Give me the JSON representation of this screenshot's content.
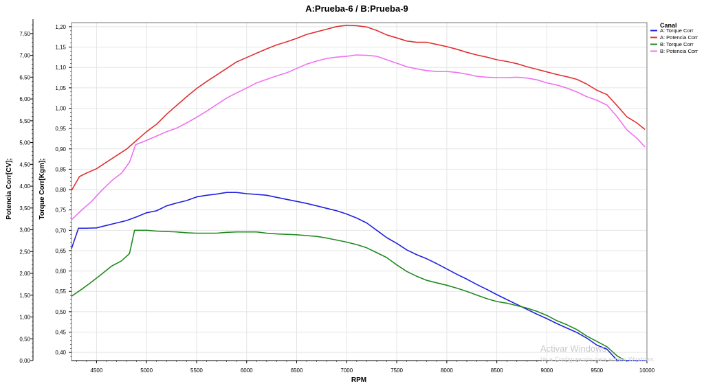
{
  "watermark": {
    "line1": "Activar Windows",
    "line2": "Ve a Configuración para activar Windows."
  },
  "chart_data": {
    "type": "line",
    "title": "A:Prueba-6 / B:Prueba-9",
    "xlabel": "RPM",
    "xlim": [
      4250,
      10000
    ],
    "x_ticks": [
      "4500",
      "5000",
      "5500",
      "6000",
      "6500",
      "7000",
      "7500",
      "8000",
      "8500",
      "9000",
      "9500",
      "10000"
    ],
    "y_left": {
      "label": "Potencia Corr[CV];",
      "ylim": [
        0,
        7.75
      ],
      "ticks": [
        "0,00",
        "0,50",
        "1,00",
        "1,50",
        "2,00",
        "2,50",
        "3,00",
        "3,50",
        "4,00",
        "4,50",
        "5,00",
        "5,50",
        "6,00",
        "6,50",
        "7,00",
        "7,50"
      ]
    },
    "y_right": {
      "label": "Torque Corr[Kgm];",
      "ylim": [
        0.38,
        1.21
      ],
      "ticks": [
        "0,40",
        "0,45",
        "0,50",
        "0,55",
        "0,60",
        "0,65",
        "0,70",
        "0,75",
        "0,80",
        "0,85",
        "0,90",
        "0,95",
        "1,00",
        "1,05",
        "1,10",
        "1,15",
        "1,20"
      ]
    },
    "grid": true,
    "legend": {
      "title": "Canal",
      "position": "right"
    },
    "series": [
      {
        "name": "A: Torque Corr",
        "color": "#1f1fe0",
        "axis": "right",
        "points": [
          [
            4250,
            0.655
          ],
          [
            4320,
            0.705
          ],
          [
            4400,
            0.705
          ],
          [
            4500,
            0.706
          ],
          [
            4600,
            0.712
          ],
          [
            4700,
            0.718
          ],
          [
            4800,
            0.724
          ],
          [
            4900,
            0.733
          ],
          [
            5000,
            0.743
          ],
          [
            5100,
            0.748
          ],
          [
            5200,
            0.76
          ],
          [
            5300,
            0.767
          ],
          [
            5400,
            0.773
          ],
          [
            5500,
            0.782
          ],
          [
            5600,
            0.786
          ],
          [
            5700,
            0.789
          ],
          [
            5800,
            0.793
          ],
          [
            5900,
            0.793
          ],
          [
            6000,
            0.79
          ],
          [
            6100,
            0.788
          ],
          [
            6200,
            0.786
          ],
          [
            6300,
            0.781
          ],
          [
            6400,
            0.776
          ],
          [
            6500,
            0.771
          ],
          [
            6600,
            0.766
          ],
          [
            6700,
            0.76
          ],
          [
            6800,
            0.754
          ],
          [
            6900,
            0.748
          ],
          [
            7000,
            0.74
          ],
          [
            7100,
            0.73
          ],
          [
            7200,
            0.718
          ],
          [
            7300,
            0.7
          ],
          [
            7400,
            0.682
          ],
          [
            7500,
            0.668
          ],
          [
            7600,
            0.652
          ],
          [
            7700,
            0.64
          ],
          [
            7800,
            0.63
          ],
          [
            7900,
            0.618
          ],
          [
            8000,
            0.605
          ],
          [
            8100,
            0.592
          ],
          [
            8200,
            0.58
          ],
          [
            8300,
            0.567
          ],
          [
            8400,
            0.555
          ],
          [
            8500,
            0.542
          ],
          [
            8600,
            0.53
          ],
          [
            8700,
            0.518
          ],
          [
            8800,
            0.506
          ],
          [
            8900,
            0.494
          ],
          [
            9000,
            0.483
          ],
          [
            9100,
            0.471
          ],
          [
            9200,
            0.46
          ],
          [
            9300,
            0.449
          ],
          [
            9400,
            0.435
          ],
          [
            9500,
            0.418
          ],
          [
            9600,
            0.408
          ],
          [
            9700,
            0.381
          ],
          [
            9800,
            0.368
          ],
          [
            9900,
            0.358
          ],
          [
            9980,
            0.348
          ]
        ]
      },
      {
        "name": "A: Potencia Corr",
        "color": "#e03030",
        "axis": "left",
        "points": [
          [
            4250,
            3.9
          ],
          [
            4330,
            4.22
          ],
          [
            4400,
            4.3
          ],
          [
            4500,
            4.4
          ],
          [
            4600,
            4.55
          ],
          [
            4700,
            4.7
          ],
          [
            4800,
            4.85
          ],
          [
            4900,
            5.05
          ],
          [
            5000,
            5.25
          ],
          [
            5100,
            5.42
          ],
          [
            5200,
            5.65
          ],
          [
            5300,
            5.85
          ],
          [
            5400,
            6.05
          ],
          [
            5500,
            6.24
          ],
          [
            5600,
            6.4
          ],
          [
            5700,
            6.55
          ],
          [
            5800,
            6.7
          ],
          [
            5900,
            6.85
          ],
          [
            6000,
            6.95
          ],
          [
            6100,
            7.05
          ],
          [
            6200,
            7.15
          ],
          [
            6300,
            7.24
          ],
          [
            6400,
            7.31
          ],
          [
            6500,
            7.39
          ],
          [
            6600,
            7.48
          ],
          [
            6700,
            7.54
          ],
          [
            6800,
            7.6
          ],
          [
            6900,
            7.66
          ],
          [
            7000,
            7.69
          ],
          [
            7100,
            7.68
          ],
          [
            7200,
            7.65
          ],
          [
            7300,
            7.57
          ],
          [
            7400,
            7.47
          ],
          [
            7500,
            7.4
          ],
          [
            7600,
            7.33
          ],
          [
            7700,
            7.3
          ],
          [
            7800,
            7.3
          ],
          [
            7900,
            7.25
          ],
          [
            8000,
            7.2
          ],
          [
            8100,
            7.14
          ],
          [
            8200,
            7.07
          ],
          [
            8300,
            7.01
          ],
          [
            8400,
            6.96
          ],
          [
            8500,
            6.9
          ],
          [
            8600,
            6.86
          ],
          [
            8700,
            6.81
          ],
          [
            8800,
            6.74
          ],
          [
            8900,
            6.68
          ],
          [
            9000,
            6.62
          ],
          [
            9100,
            6.56
          ],
          [
            9200,
            6.51
          ],
          [
            9300,
            6.45
          ],
          [
            9400,
            6.34
          ],
          [
            9500,
            6.2
          ],
          [
            9600,
            6.1
          ],
          [
            9700,
            5.85
          ],
          [
            9800,
            5.59
          ],
          [
            9900,
            5.45
          ],
          [
            9980,
            5.3
          ]
        ]
      },
      {
        "name": "B: Torque Corr",
        "color": "#1f8a1f",
        "axis": "right",
        "points": [
          [
            4250,
            0.538
          ],
          [
            4350,
            0.555
          ],
          [
            4450,
            0.573
          ],
          [
            4550,
            0.592
          ],
          [
            4650,
            0.612
          ],
          [
            4750,
            0.625
          ],
          [
            4830,
            0.643
          ],
          [
            4880,
            0.7
          ],
          [
            5000,
            0.7
          ],
          [
            5100,
            0.698
          ],
          [
            5200,
            0.697
          ],
          [
            5300,
            0.696
          ],
          [
            5400,
            0.694
          ],
          [
            5500,
            0.693
          ],
          [
            5600,
            0.693
          ],
          [
            5700,
            0.693
          ],
          [
            5800,
            0.695
          ],
          [
            5900,
            0.696
          ],
          [
            6000,
            0.696
          ],
          [
            6100,
            0.696
          ],
          [
            6200,
            0.693
          ],
          [
            6300,
            0.691
          ],
          [
            6400,
            0.69
          ],
          [
            6500,
            0.689
          ],
          [
            6600,
            0.687
          ],
          [
            6700,
            0.685
          ],
          [
            6800,
            0.681
          ],
          [
            6900,
            0.676
          ],
          [
            7000,
            0.671
          ],
          [
            7100,
            0.665
          ],
          [
            7200,
            0.657
          ],
          [
            7300,
            0.645
          ],
          [
            7400,
            0.633
          ],
          [
            7500,
            0.615
          ],
          [
            7600,
            0.599
          ],
          [
            7700,
            0.587
          ],
          [
            7800,
            0.577
          ],
          [
            7900,
            0.571
          ],
          [
            8000,
            0.565
          ],
          [
            8100,
            0.558
          ],
          [
            8200,
            0.55
          ],
          [
            8300,
            0.541
          ],
          [
            8400,
            0.532
          ],
          [
            8500,
            0.525
          ],
          [
            8600,
            0.521
          ],
          [
            8700,
            0.515
          ],
          [
            8800,
            0.509
          ],
          [
            8900,
            0.501
          ],
          [
            9000,
            0.491
          ],
          [
            9100,
            0.478
          ],
          [
            9200,
            0.468
          ],
          [
            9300,
            0.456
          ],
          [
            9400,
            0.44
          ],
          [
            9500,
            0.427
          ],
          [
            9600,
            0.414
          ],
          [
            9700,
            0.392
          ],
          [
            9780,
            0.375
          ]
        ]
      },
      {
        "name": "B: Potencia Corr",
        "color": "#f070f0",
        "axis": "left",
        "points": [
          [
            4250,
            3.23
          ],
          [
            4350,
            3.45
          ],
          [
            4450,
            3.65
          ],
          [
            4550,
            3.9
          ],
          [
            4650,
            4.12
          ],
          [
            4750,
            4.3
          ],
          [
            4830,
            4.55
          ],
          [
            4890,
            4.95
          ],
          [
            5000,
            5.05
          ],
          [
            5100,
            5.15
          ],
          [
            5200,
            5.25
          ],
          [
            5300,
            5.33
          ],
          [
            5400,
            5.45
          ],
          [
            5500,
            5.58
          ],
          [
            5600,
            5.72
          ],
          [
            5700,
            5.87
          ],
          [
            5800,
            6.02
          ],
          [
            5900,
            6.14
          ],
          [
            6000,
            6.25
          ],
          [
            6100,
            6.37
          ],
          [
            6200,
            6.45
          ],
          [
            6300,
            6.53
          ],
          [
            6400,
            6.6
          ],
          [
            6500,
            6.7
          ],
          [
            6600,
            6.8
          ],
          [
            6700,
            6.87
          ],
          [
            6800,
            6.93
          ],
          [
            6900,
            6.96
          ],
          [
            7000,
            6.98
          ],
          [
            7100,
            7.01
          ],
          [
            7200,
            7.0
          ],
          [
            7300,
            6.98
          ],
          [
            7400,
            6.9
          ],
          [
            7500,
            6.82
          ],
          [
            7600,
            6.74
          ],
          [
            7700,
            6.69
          ],
          [
            7800,
            6.65
          ],
          [
            7900,
            6.63
          ],
          [
            8000,
            6.63
          ],
          [
            8100,
            6.61
          ],
          [
            8200,
            6.57
          ],
          [
            8300,
            6.52
          ],
          [
            8400,
            6.5
          ],
          [
            8500,
            6.49
          ],
          [
            8600,
            6.49
          ],
          [
            8700,
            6.5
          ],
          [
            8800,
            6.48
          ],
          [
            8900,
            6.44
          ],
          [
            9000,
            6.37
          ],
          [
            9100,
            6.32
          ],
          [
            9200,
            6.25
          ],
          [
            9300,
            6.16
          ],
          [
            9400,
            6.05
          ],
          [
            9500,
            5.97
          ],
          [
            9600,
            5.86
          ],
          [
            9700,
            5.6
          ],
          [
            9800,
            5.29
          ],
          [
            9900,
            5.1
          ],
          [
            9980,
            4.9
          ]
        ]
      }
    ]
  }
}
